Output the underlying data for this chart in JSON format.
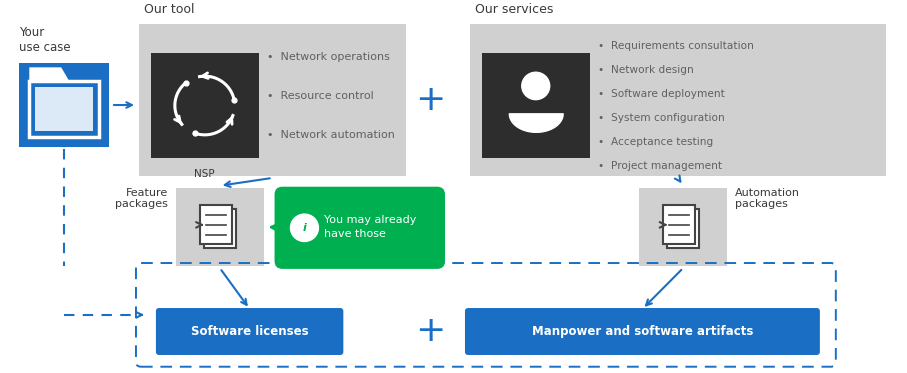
{
  "bg_color": "#ffffff",
  "gray_box_color": "#d0d0d0",
  "dark_box_color": "#2d2d2d",
  "blue_color": "#1a6fc4",
  "blue_btn_color": "#1a6fc4",
  "green_color": "#00b050",
  "white": "#ffffff",
  "light_gray": "#d0d0d0",
  "text_dark": "#3a3a3a",
  "text_gray": "#606060",
  "arrow_color": "#1a6fc4",
  "your_use_case_label": "Your\nuse case",
  "our_tool_label": "Our tool",
  "our_services_label": "Our services",
  "nsp_label": "NSP",
  "feature_packages_label": "Feature\npackages",
  "automation_packages_label": "Automation\npackages",
  "you_may_label": "You may already\nhave those",
  "sw_licenses_label": "Software licenses",
  "manpower_label": "Manpower and software artifacts",
  "tool_bullets": [
    "Network operations",
    "Resource control",
    "Network automation"
  ],
  "service_bullets": [
    "Requirements consultation",
    "Network design",
    "Software deployment",
    "System configuration",
    "Acceptance testing",
    "Project management"
  ],
  "figw": 9.07,
  "figh": 3.73,
  "dpi": 100
}
